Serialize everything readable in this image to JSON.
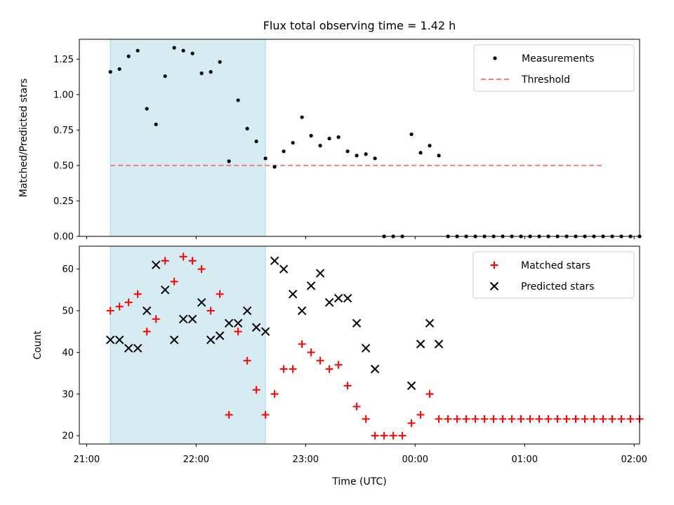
{
  "chart_data": {
    "title": "Flux total observing time = 1.42 h",
    "shaded_span": {
      "start": "21:13",
      "end": "22:38",
      "color": "#add8e6"
    },
    "x_axis": {
      "xlabel": "Time (UTC)",
      "range": [
        "20:56",
        "02:03"
      ],
      "tick_times": [
        "21:00",
        "22:00",
        "23:00",
        "00:00",
        "01:00",
        "02:00"
      ],
      "tick_labels": [
        "21:00",
        "22:00",
        "23:00",
        "00:00",
        "01:00",
        "02:00"
      ]
    },
    "panels": [
      {
        "type": "scatter",
        "ylabel": "Matched/Predicted stars",
        "ylim": [
          0,
          1.39
        ],
        "yticks": [
          "0.00",
          "0.25",
          "0.50",
          "0.75",
          "1.00",
          "1.25"
        ],
        "legend": {
          "position": "top-right",
          "entries": [
            {
              "label": "Measurements",
              "kind": "dot",
              "color": "#000000"
            },
            {
              "label": "Threshold",
              "kind": "dashed-line",
              "color": "#f08080"
            }
          ]
        },
        "threshold": {
          "value": 0.5,
          "start": "21:13",
          "end": "01:43",
          "color": "#f08080"
        },
        "series": [
          {
            "name": "Measurements",
            "marker": "dot",
            "color": "#000000",
            "x": [
              "21:13",
              "21:18",
              "21:23",
              "21:28",
              "21:33",
              "21:38",
              "21:43",
              "21:48",
              "21:53",
              "21:58",
              "22:03",
              "22:08",
              "22:13",
              "22:18",
              "22:23",
              "22:28",
              "22:33",
              "22:38",
              "22:43",
              "22:48",
              "22:53",
              "22:58",
              "23:03",
              "23:08",
              "23:13",
              "23:18",
              "23:23",
              "23:28",
              "23:33",
              "23:38",
              "23:43",
              "23:48",
              "23:53",
              "23:58",
              "00:03",
              "00:08",
              "00:13",
              "00:18",
              "00:23",
              "00:28",
              "00:33",
              "00:38",
              "00:43",
              "00:48",
              "00:53",
              "00:58",
              "01:03",
              "01:08",
              "01:13",
              "01:18",
              "01:23",
              "01:28",
              "01:33",
              "01:38",
              "01:43",
              "01:48",
              "01:53",
              "01:58",
              "02:03"
            ],
            "y": [
              1.16,
              1.18,
              1.27,
              1.31,
              0.9,
              0.79,
              1.13,
              1.33,
              1.31,
              1.29,
              1.15,
              1.16,
              1.23,
              0.53,
              0.96,
              0.76,
              0.67,
              0.55,
              0.49,
              0.6,
              0.66,
              0.84,
              0.71,
              0.64,
              0.69,
              0.7,
              0.6,
              0.57,
              0.58,
              0.55,
              0,
              0,
              0,
              0.72,
              0.59,
              0.64,
              0.57,
              0,
              0,
              0,
              0,
              0,
              0,
              0,
              0,
              0,
              0,
              0,
              0,
              0,
              0,
              0,
              0,
              0,
              0,
              0,
              0,
              0,
              0
            ]
          }
        ]
      },
      {
        "type": "scatter",
        "ylabel": "Count",
        "ylim": [
          18,
          65.5
        ],
        "yticks": [
          "20",
          "30",
          "40",
          "50",
          "60"
        ],
        "legend": {
          "position": "top-right",
          "entries": [
            {
              "label": "Matched stars",
              "kind": "plus",
              "color": "#ff0000"
            },
            {
              "label": "Predicted stars",
              "kind": "cross",
              "color": "#000000"
            }
          ]
        },
        "series": [
          {
            "name": "Matched stars",
            "marker": "plus",
            "color": "#ff0000",
            "x": [
              "21:13",
              "21:18",
              "21:23",
              "21:28",
              "21:33",
              "21:38",
              "21:43",
              "21:48",
              "21:53",
              "21:58",
              "22:03",
              "22:08",
              "22:13",
              "22:18",
              "22:23",
              "22:28",
              "22:33",
              "22:38",
              "22:43",
              "22:48",
              "22:53",
              "22:58",
              "23:03",
              "23:08",
              "23:13",
              "23:18",
              "23:23",
              "23:28",
              "23:33",
              "23:38",
              "23:43",
              "23:48",
              "23:53",
              "23:58",
              "00:03",
              "00:08",
              "00:13",
              "00:18",
              "00:23",
              "00:28",
              "00:33",
              "00:38",
              "00:43",
              "00:48",
              "00:53",
              "00:58",
              "01:03",
              "01:08",
              "01:13",
              "01:18",
              "01:23",
              "01:28",
              "01:33",
              "01:38",
              "01:43",
              "01:48",
              "01:53",
              "01:58",
              "02:03"
            ],
            "y": [
              50,
              51,
              52,
              54,
              45,
              48,
              62,
              57,
              63,
              62,
              60,
              50,
              54,
              25,
              45,
              38,
              31,
              25,
              30,
              36,
              36,
              42,
              40,
              38,
              36,
              37,
              32,
              27,
              24,
              20,
              20,
              20,
              20,
              23,
              25,
              30,
              24,
              24,
              24,
              24,
              24,
              24,
              24,
              24,
              24,
              24,
              24,
              24,
              24,
              24,
              24,
              24,
              24,
              24,
              24,
              24,
              24,
              24,
              24
            ]
          },
          {
            "name": "Predicted stars",
            "marker": "cross",
            "color": "#000000",
            "x": [
              "21:13",
              "21:18",
              "21:23",
              "21:28",
              "21:33",
              "21:38",
              "21:43",
              "21:48",
              "21:53",
              "21:58",
              "22:03",
              "22:08",
              "22:13",
              "22:18",
              "22:23",
              "22:28",
              "22:33",
              "22:38",
              "22:43",
              "22:48",
              "22:53",
              "22:58",
              "23:03",
              "23:08",
              "23:13",
              "23:18",
              "23:23",
              "23:28",
              "23:33",
              "23:38",
              "23:58",
              "00:03",
              "00:08",
              "00:13"
            ],
            "y": [
              43,
              43,
              41,
              41,
              50,
              61,
              55,
              43,
              48,
              48,
              52,
              43,
              44,
              47,
              47,
              50,
              46,
              45,
              62,
              60,
              54,
              50,
              56,
              59,
              52,
              53,
              53,
              47,
              41,
              36,
              32,
              42,
              47,
              42
            ]
          }
        ]
      }
    ]
  }
}
